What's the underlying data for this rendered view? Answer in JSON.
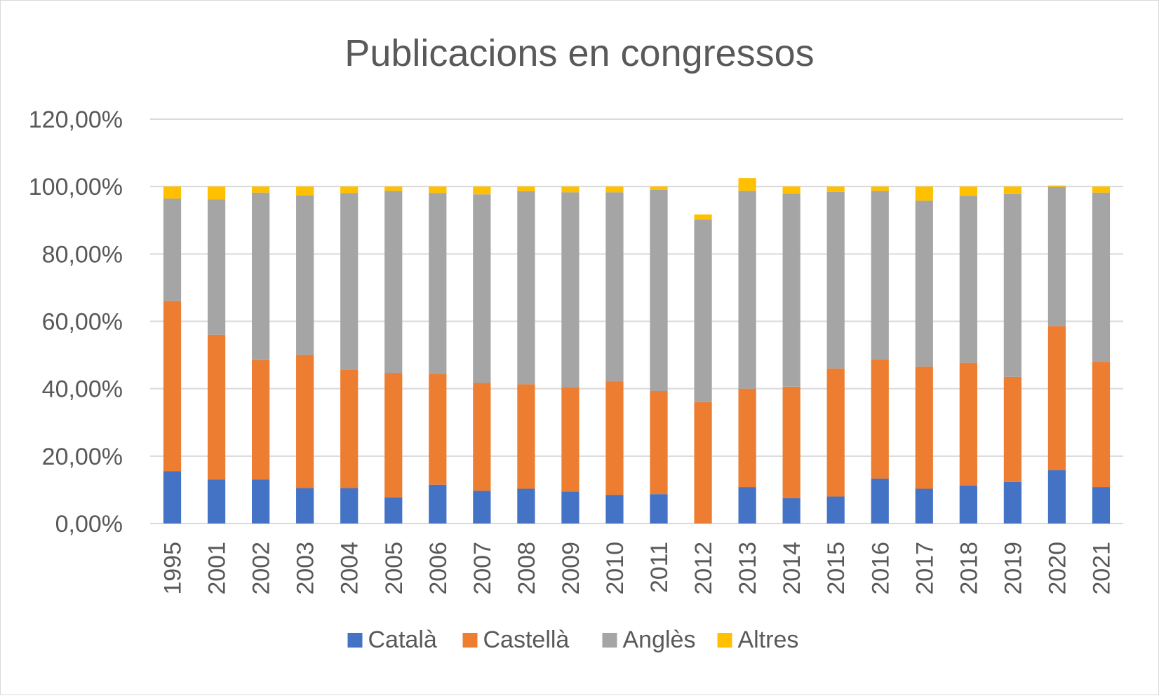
{
  "chart_data": {
    "type": "bar",
    "stacked": true,
    "title": "Publicacions en congressos",
    "xlabel": "",
    "ylabel": "",
    "ylim": [
      0,
      1.2
    ],
    "y_ticks": [
      0,
      0.2,
      0.4,
      0.6,
      0.8,
      1.0,
      1.2
    ],
    "y_tick_labels": [
      "0,00%",
      "20,00%",
      "40,00%",
      "60,00%",
      "80,00%",
      "100,00%",
      "120,00%"
    ],
    "grid": "horizontal",
    "legend_position": "bottom",
    "categories": [
      "1995",
      "2001",
      "2002",
      "2003",
      "2004",
      "2005",
      "2006",
      "2007",
      "2008",
      "2009",
      "2010",
      "2011",
      "2012",
      "2013",
      "2014",
      "2015",
      "2016",
      "2017",
      "2018",
      "2019",
      "2020",
      "2021"
    ],
    "series": [
      {
        "name": "Català",
        "color": "#4472c4",
        "values": [
          0.155,
          0.13,
          0.13,
          0.105,
          0.105,
          0.077,
          0.115,
          0.097,
          0.103,
          0.095,
          0.085,
          0.087,
          0.0,
          0.108,
          0.075,
          0.08,
          0.133,
          0.103,
          0.113,
          0.123,
          0.158,
          0.108
        ]
      },
      {
        "name": "Castellà",
        "color": "#ed7d31",
        "values": [
          0.505,
          0.43,
          0.355,
          0.395,
          0.352,
          0.37,
          0.328,
          0.32,
          0.31,
          0.31,
          0.337,
          0.306,
          0.36,
          0.292,
          0.331,
          0.38,
          0.354,
          0.362,
          0.364,
          0.312,
          0.428,
          0.372
        ]
      },
      {
        "name": "Anglès",
        "color": "#a5a5a5",
        "values": [
          0.304,
          0.402,
          0.497,
          0.474,
          0.524,
          0.54,
          0.538,
          0.56,
          0.573,
          0.578,
          0.561,
          0.597,
          0.542,
          0.587,
          0.573,
          0.524,
          0.5,
          0.493,
          0.495,
          0.543,
          0.413,
          0.502
        ]
      },
      {
        "name": "Altres",
        "color": "#ffc000",
        "values": [
          0.036,
          0.038,
          0.018,
          0.026,
          0.019,
          0.013,
          0.019,
          0.023,
          0.014,
          0.017,
          0.017,
          0.01,
          0.015,
          0.038,
          0.021,
          0.016,
          0.013,
          0.042,
          0.028,
          0.022,
          0.004,
          0.018
        ]
      }
    ]
  }
}
